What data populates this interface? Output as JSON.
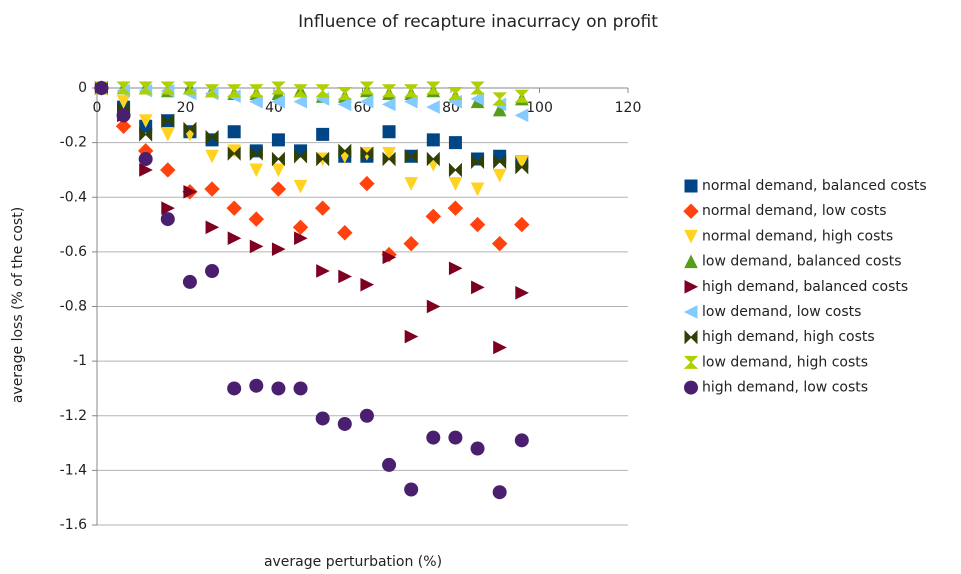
{
  "chart_data": {
    "type": "scatter",
    "title": "Influence of recapture inacurracy on profit",
    "x_label": "average perturbation (%)",
    "y_label": "average loss (% of the cost)",
    "x": [
      1,
      6,
      11,
      16,
      21,
      26,
      31,
      36,
      41,
      46,
      51,
      56,
      61,
      66,
      71,
      76,
      81,
      86,
      91,
      96
    ],
    "xlim": [
      0,
      120
    ],
    "xticks": [
      0,
      20,
      40,
      60,
      80,
      100,
      120
    ],
    "ylim": [
      -1.6,
      0
    ],
    "yticks": [
      0,
      -0.2,
      -0.4,
      -0.6,
      -0.8,
      -1,
      -1.2,
      -1.4,
      -1.6
    ],
    "grid": true,
    "legend": "right",
    "series": [
      {
        "name": "normal demand, balanced costs",
        "color": "#004586",
        "marker": "square",
        "values": [
          0,
          -0.07,
          -0.14,
          -0.12,
          -0.16,
          -0.19,
          -0.16,
          -0.23,
          -0.19,
          -0.23,
          -0.17,
          -0.25,
          -0.25,
          -0.16,
          -0.25,
          -0.19,
          -0.2,
          -0.26,
          -0.25,
          -0.27
        ]
      },
      {
        "name": "normal demand, low costs",
        "color": "#ff420e",
        "marker": "diamond",
        "values": [
          0,
          -0.14,
          -0.23,
          -0.3,
          -0.38,
          -0.37,
          -0.44,
          -0.48,
          -0.37,
          -0.51,
          -0.44,
          -0.53,
          -0.35,
          -0.61,
          -0.57,
          -0.47,
          -0.44,
          -0.5,
          -0.57,
          -0.5
        ]
      },
      {
        "name": "normal demand, high costs",
        "color": "#ffd320",
        "marker": "triangle-down",
        "values": [
          0,
          -0.05,
          -0.12,
          -0.17,
          -0.17,
          -0.25,
          -0.23,
          -0.3,
          -0.3,
          -0.36,
          -0.26,
          -0.25,
          -0.24,
          -0.24,
          -0.35,
          -0.28,
          -0.35,
          -0.37,
          -0.32,
          -0.27
        ]
      },
      {
        "name": "low demand, balanced costs",
        "color": "#579d1c",
        "marker": "triangle-up",
        "values": [
          0,
          0,
          0,
          -0.01,
          0,
          -0.01,
          -0.02,
          -0.02,
          -0.02,
          -0.01,
          -0.03,
          -0.03,
          -0.01,
          -0.02,
          -0.02,
          -0.01,
          -0.03,
          -0.05,
          -0.08,
          -0.04
        ]
      },
      {
        "name": "high demand, balanced costs",
        "color": "#7e0021",
        "marker": "triangle-right",
        "values": [
          0,
          -0.1,
          -0.3,
          -0.44,
          -0.38,
          -0.51,
          -0.55,
          -0.58,
          -0.59,
          -0.55,
          -0.67,
          -0.69,
          -0.72,
          -0.62,
          -0.91,
          -0.8,
          -0.66,
          -0.73,
          -0.95,
          -0.75
        ]
      },
      {
        "name": "low demand, low costs",
        "color": "#83caff",
        "marker": "triangle-left",
        "values": [
          0,
          -0.01,
          -0.01,
          -0.01,
          -0.02,
          -0.02,
          -0.03,
          -0.05,
          -0.05,
          -0.05,
          -0.04,
          -0.06,
          -0.05,
          -0.06,
          -0.05,
          -0.07,
          -0.05,
          -0.04,
          -0.06,
          -0.1
        ]
      },
      {
        "name": "high demand, high costs",
        "color": "#314004",
        "marker": "bowtie",
        "values": [
          0,
          -0.08,
          -0.17,
          -0.12,
          -0.15,
          -0.18,
          -0.24,
          -0.24,
          -0.26,
          -0.25,
          -0.26,
          -0.23,
          -0.24,
          -0.26,
          -0.25,
          -0.26,
          -0.3,
          -0.27,
          -0.27,
          -0.29
        ]
      },
      {
        "name": "low demand, high costs",
        "color": "#aecf00",
        "marker": "hourglass",
        "values": [
          0,
          0,
          0,
          0,
          0,
          -0.01,
          -0.01,
          -0.01,
          0,
          -0.01,
          -0.01,
          -0.02,
          0,
          -0.01,
          -0.01,
          0,
          -0.02,
          0,
          -0.04,
          -0.03
        ]
      },
      {
        "name": "high demand, low costs",
        "color": "#4b1f6f",
        "marker": "circle",
        "values": [
          0,
          -0.1,
          -0.26,
          -0.48,
          -0.71,
          -0.67,
          -1.1,
          -1.09,
          -1.1,
          -1.1,
          -1.21,
          -1.23,
          -1.2,
          -1.38,
          -1.47,
          -1.28,
          -1.28,
          -1.32,
          -1.48,
          -1.29
        ]
      }
    ]
  }
}
